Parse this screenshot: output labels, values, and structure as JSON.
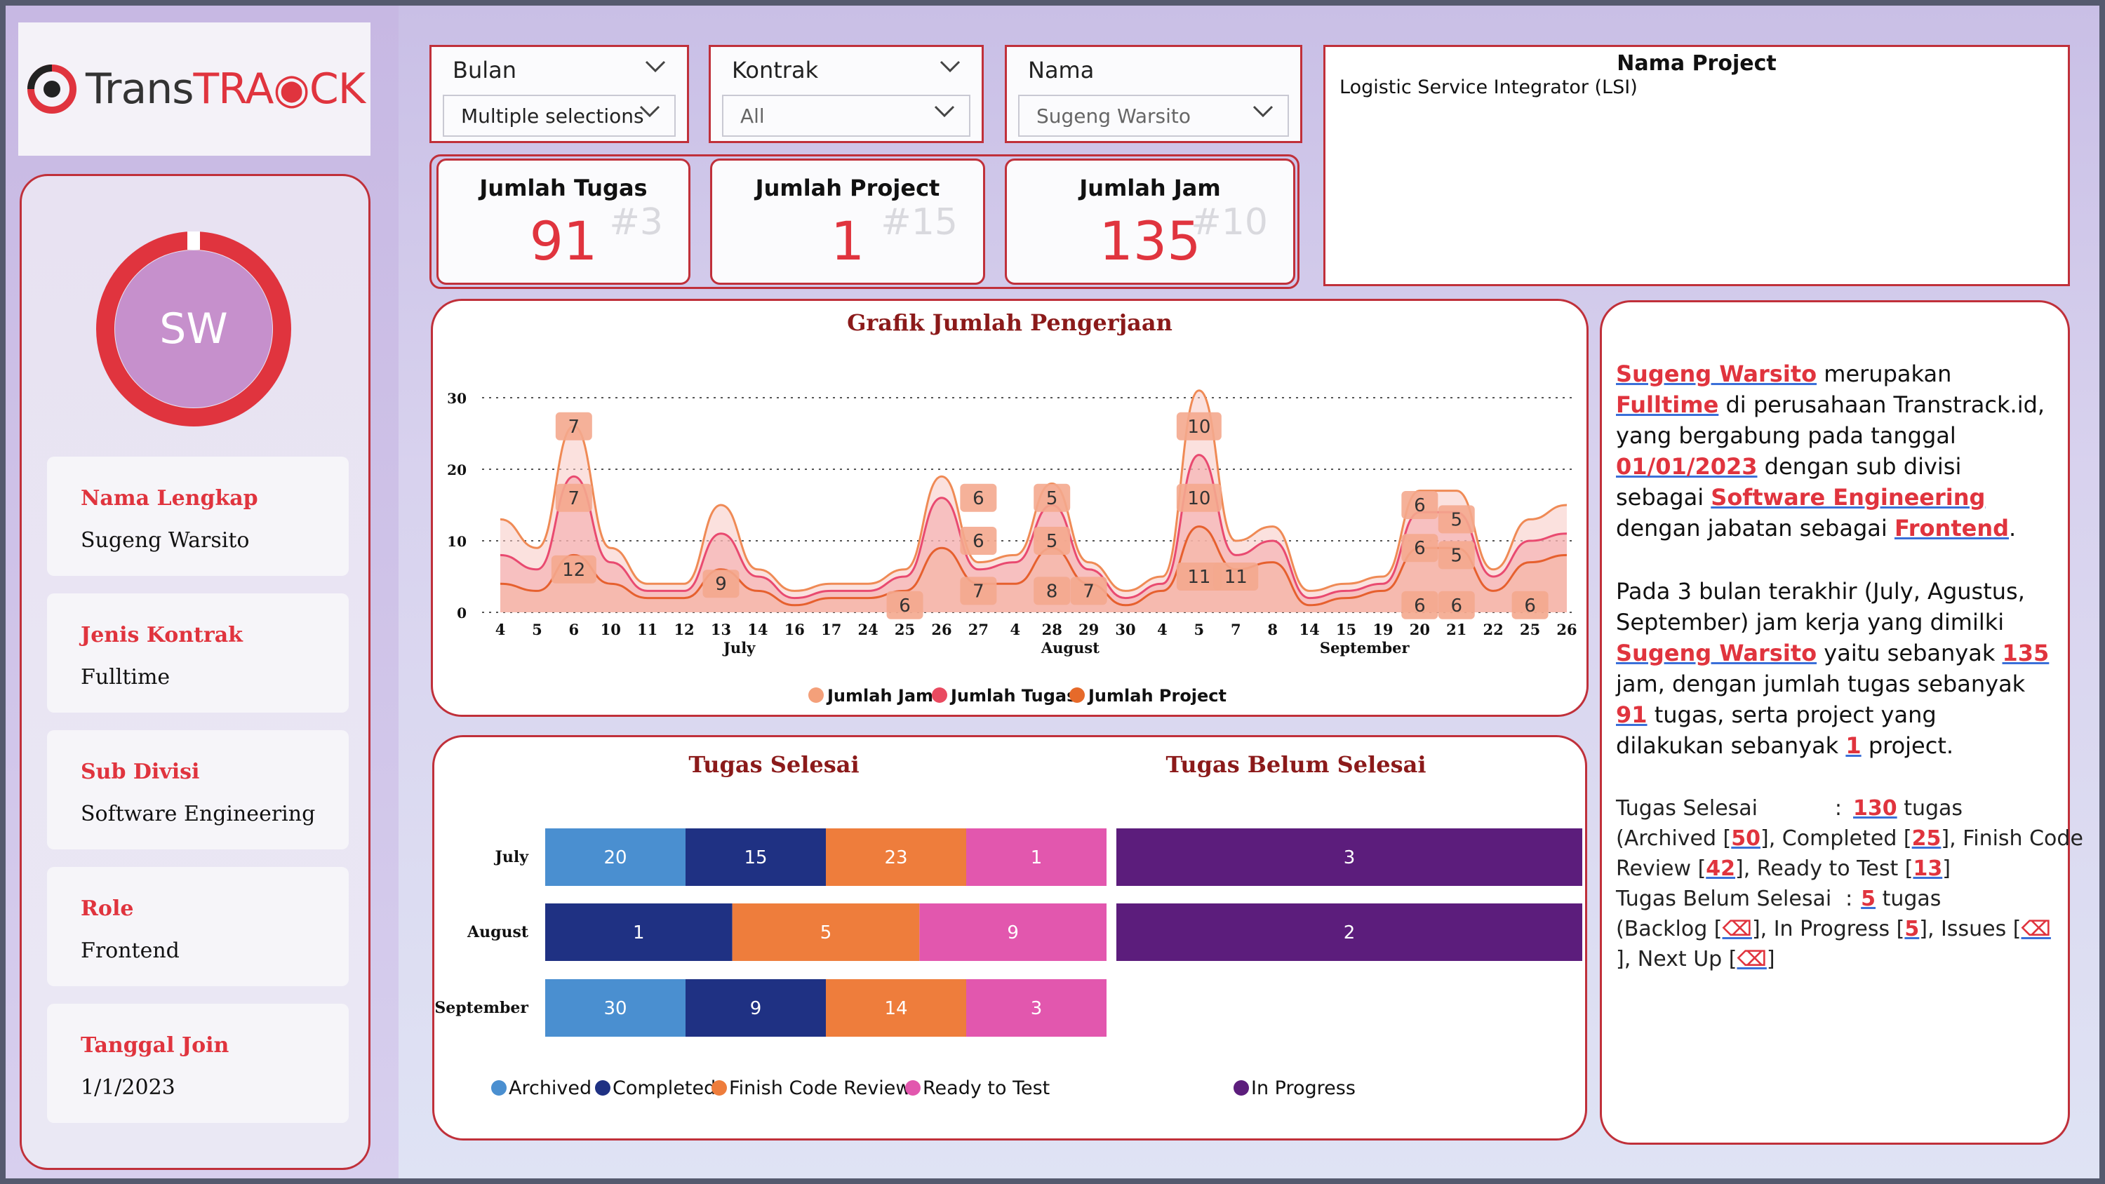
{
  "logo": {
    "part1": "Trans",
    "part2": "TRA",
    "part3": "CK"
  },
  "profile": {
    "initials": "SW",
    "fields": [
      {
        "label": "Nama Lengkap",
        "value": "Sugeng Warsito"
      },
      {
        "label": "Jenis Kontrak",
        "value": "Fulltime"
      },
      {
        "label": "Sub Divisi",
        "value": "Software Engineering"
      },
      {
        "label": "Role",
        "value": "Frontend"
      },
      {
        "label": "Tanggal Join",
        "value": "1/1/2023"
      }
    ],
    "ring_fraction": 0.98
  },
  "filters": {
    "bulan": {
      "title": "Bulan",
      "value": "Multiple selections"
    },
    "kontrak": {
      "title": "Kontrak",
      "value": "All"
    },
    "nama": {
      "title": "Nama",
      "value": "Sugeng Warsito"
    }
  },
  "kpis": [
    {
      "title": "Jumlah Tugas",
      "value": "91",
      "rank": "#3"
    },
    {
      "title": "Jumlah Project",
      "value": "1",
      "rank": "#15"
    },
    {
      "title": "Jumlah Jam",
      "value": "135",
      "rank": "#10"
    }
  ],
  "project": {
    "title": "Nama Project",
    "value": "Logistic Service Integrator (LSI)"
  },
  "description": {
    "name": "Sugeng Warsito",
    "t1": " merupakan ",
    "kontrak": "Fulltime",
    "t2": " di perusahaan Transtrack.id, yang bergabung pada tanggal ",
    "date": "01/01/2023",
    "t3": " dengan sub divisi sebagai ",
    "subdiv": "Software Engineering",
    "t4": " dengan jabatan sebagai ",
    "role": "Frontend",
    "t5": ".",
    "p2a": "Pada 3 bulan terakhir (July, Agustus, September) jam kerja yang dimilki ",
    "p2name": "Sugeng Warsito",
    "p2b": " yaitu sebanyak ",
    "jam": "135",
    "p2c": " jam, dengan jumlah tugas sebanyak ",
    "tugas": "91",
    "p2d": " tugas, serta project yang dilakukan sebanyak ",
    "project": "1",
    "p2e": " project.",
    "s1a": "Tugas Selesai",
    "s1b": ":",
    "s1num": "130",
    "s1c": "tugas",
    "s2a": "(Archived [",
    "s2n1": "50",
    "s2b": "], Completed [",
    "s2n2": "25",
    "s2c": "], Finish Code",
    "s3a": "Review [",
    "s3n1": "42",
    "s3b": "], Ready to Test [",
    "s3n2": "13",
    "s3c": "]",
    "s4a": "Tugas Belum Selesai",
    "s4b": ":",
    "s4num": "5",
    "s4c": "tugas",
    "s5a": "(Backlog [",
    "s5b": "], In Progress [",
    "s5n": "5",
    "s5c": "], Issues [",
    "s6a": "], Next Up [",
    "s6b": "]"
  },
  "chart_data": [
    {
      "type": "area",
      "title": "Grafik Jumlah Pengerjaan",
      "x": [
        "4",
        "5",
        "6",
        "10",
        "11",
        "12",
        "13",
        "14",
        "16",
        "17",
        "24",
        "25",
        "26",
        "27",
        "4",
        "28",
        "29",
        "30",
        "4",
        "5",
        "7",
        "8",
        "14",
        "15",
        "19",
        "20",
        "21",
        "22",
        "25",
        "26"
      ],
      "month_labels": [
        "July",
        "August",
        "September"
      ],
      "ylim": [
        0,
        30
      ],
      "yticks": [
        "0",
        "10",
        "20",
        "30"
      ],
      "series": [
        {
          "name": "Jumlah Jam",
          "values": [
            13,
            9,
            26,
            9,
            4,
            4,
            15,
            6,
            3,
            4,
            4,
            6,
            19,
            7,
            8,
            18,
            7,
            3,
            5,
            31,
            10,
            12,
            3,
            4,
            5,
            17,
            17,
            6,
            13,
            15
          ]
        },
        {
          "name": "Jumlah Tugas",
          "values": [
            8,
            6,
            19,
            7,
            3,
            3,
            11,
            5,
            2,
            3,
            3,
            5,
            16,
            6,
            7,
            15,
            6,
            2,
            4,
            22,
            8,
            10,
            2,
            3,
            4,
            14,
            14,
            5,
            10,
            11
          ]
        },
        {
          "name": "Jumlah Project",
          "values": [
            4,
            3,
            8,
            4,
            2,
            2,
            6,
            3,
            1,
            2,
            2,
            3,
            9,
            4,
            4,
            9,
            4,
            1,
            3,
            12,
            6,
            7,
            1,
            2,
            3,
            9,
            9,
            3,
            7,
            8
          ]
        }
      ],
      "labels": [
        {
          "xi": 2,
          "v": 26,
          "t": "7"
        },
        {
          "xi": 2,
          "v": 16,
          "t": "7"
        },
        {
          "xi": 2,
          "v": 6,
          "t": "12"
        },
        {
          "xi": 6,
          "v": 4,
          "t": "9"
        },
        {
          "xi": 11,
          "v": 1,
          "t": "6"
        },
        {
          "xi": 13,
          "v": 16,
          "t": "6"
        },
        {
          "xi": 13,
          "v": 10,
          "t": "6"
        },
        {
          "xi": 13,
          "v": 3,
          "t": "7"
        },
        {
          "xi": 15,
          "v": 16,
          "t": "5"
        },
        {
          "xi": 15,
          "v": 10,
          "t": "5"
        },
        {
          "xi": 15,
          "v": 3,
          "t": "8"
        },
        {
          "xi": 16,
          "v": 3,
          "t": "7"
        },
        {
          "xi": 19,
          "v": 26,
          "t": "10"
        },
        {
          "xi": 19,
          "v": 16,
          "t": "10"
        },
        {
          "xi": 19,
          "v": 5,
          "t": "11"
        },
        {
          "xi": 20,
          "v": 5,
          "t": "11"
        },
        {
          "xi": 25,
          "v": 15,
          "t": "6"
        },
        {
          "xi": 25,
          "v": 9,
          "t": "6"
        },
        {
          "xi": 25,
          "v": 1,
          "t": "6"
        },
        {
          "xi": 26,
          "v": 13,
          "t": "5"
        },
        {
          "xi": 26,
          "v": 8,
          "t": "5"
        },
        {
          "xi": 26,
          "v": 1,
          "t": "6"
        },
        {
          "xi": 28,
          "v": 1,
          "t": "6"
        }
      ]
    },
    {
      "type": "bar",
      "title": "Tugas Selesai",
      "categories": [
        "July",
        "August",
        "September"
      ],
      "series": [
        {
          "name": "Archived",
          "values": [
            20,
            0,
            30
          ],
          "color": "#4a8fd0"
        },
        {
          "name": "Completed",
          "values": [
            15,
            1,
            9
          ],
          "color": "#1f3183"
        },
        {
          "name": "Finish Code Review",
          "values": [
            23,
            5,
            14
          ],
          "color": "#ee7d3c"
        },
        {
          "name": "Ready to Test",
          "values": [
            1,
            9,
            3
          ],
          "color": "#e257ae"
        }
      ]
    },
    {
      "type": "bar",
      "title": "Tugas Belum Selesai",
      "categories": [
        "July",
        "August",
        "September"
      ],
      "series": [
        {
          "name": "In Progress",
          "values": [
            3,
            2,
            0
          ],
          "color": "#5c1d7c"
        }
      ]
    }
  ],
  "colors": {
    "accent": "#e0343e",
    "border": "#c0303a",
    "title_dark": "#8b1a1a"
  }
}
